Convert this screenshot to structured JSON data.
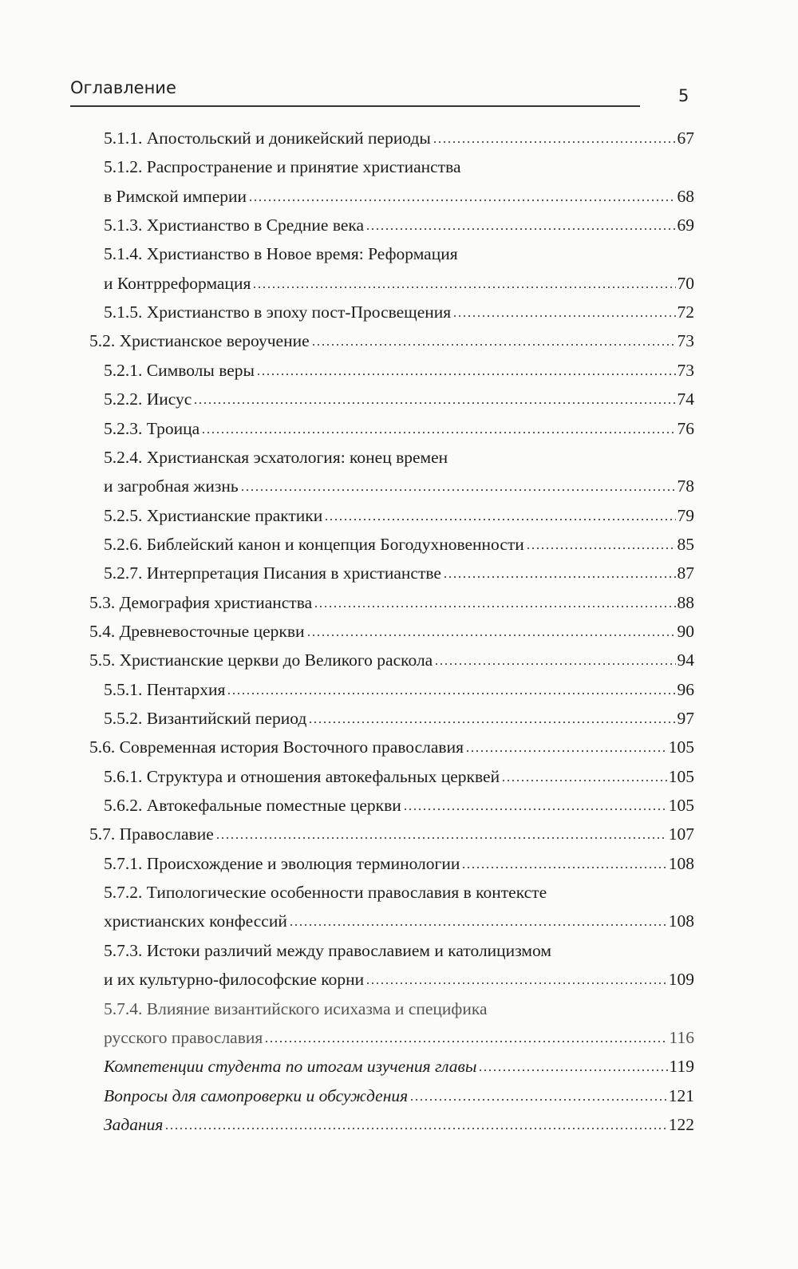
{
  "header": {
    "title": "Оглавление",
    "page_number": "5"
  },
  "toc": [
    {
      "level": 3,
      "text": "5.1.1. Апостольский и доникейский периоды",
      "page": "67"
    },
    {
      "level": 3,
      "text": "5.1.2. Распространение и принятие христианства",
      "page": null
    },
    {
      "level": 3,
      "text": "в Римской империи",
      "page": "68"
    },
    {
      "level": 3,
      "text": "5.1.3. Христианство в Средние века",
      "page": "69"
    },
    {
      "level": 3,
      "text": "5.1.4. Христианство в Новое время: Реформация",
      "page": null
    },
    {
      "level": 3,
      "text": "и Контрреформация",
      "page": "70"
    },
    {
      "level": 3,
      "text": "5.1.5. Христианство в эпоху пост-Просвещения",
      "page": "72"
    },
    {
      "level": 2,
      "text": "5.2. Христианское вероучение",
      "page": "73"
    },
    {
      "level": 3,
      "text": "5.2.1. Символы веры",
      "page": "73"
    },
    {
      "level": 3,
      "text": "5.2.2. Иисус",
      "page": "74"
    },
    {
      "level": 3,
      "text": "5.2.3. Троица",
      "page": "76"
    },
    {
      "level": 3,
      "text": "5.2.4. Христианская эсхатология: конец времен",
      "page": null
    },
    {
      "level": 3,
      "text": "и загробная жизнь",
      "page": "78"
    },
    {
      "level": 3,
      "text": "5.2.5. Христианские практики",
      "page": "79"
    },
    {
      "level": 3,
      "text": "5.2.6. Библейский канон и концепция Богодухновенности",
      "page": "85"
    },
    {
      "level": 3,
      "text": "5.2.7. Интерпретация Писания в христианстве",
      "page": "87"
    },
    {
      "level": 2,
      "text": "5.3. Демография христианства",
      "page": "88"
    },
    {
      "level": 2,
      "text": "5.4. Древневосточные церкви",
      "page": "90"
    },
    {
      "level": 2,
      "text": "5.5. Христианские церкви до Великого раскола",
      "page": "94"
    },
    {
      "level": 3,
      "text": "5.5.1. Пентархия",
      "page": "96"
    },
    {
      "level": 3,
      "text": "5.5.2. Византийский период",
      "page": "97"
    },
    {
      "level": 2,
      "text": "5.6. Современная история Восточного православия",
      "page": "105"
    },
    {
      "level": 3,
      "text": "5.6.1. Структура и отношения автокефальных церквей",
      "page": "105"
    },
    {
      "level": 3,
      "text": "5.6.2. Автокефальные поместные церкви",
      "page": "105"
    },
    {
      "level": 2,
      "text": "5.7. Православие",
      "page": "107"
    },
    {
      "level": 3,
      "text": "5.7.1. Происхождение и эволюция терминологии",
      "page": "108"
    },
    {
      "level": 3,
      "text": "5.7.2. Типологические особенности православия в контексте",
      "page": null
    },
    {
      "level": 3,
      "text": "христианских конфессий",
      "page": "108"
    },
    {
      "level": 3,
      "text": "5.7.3. Истоки различий между православием и католицизмом",
      "page": null
    },
    {
      "level": 3,
      "text": "и их культурно-философские корни",
      "page": "109"
    },
    {
      "level": 3,
      "text": "5.7.4. Влияние византийского исихазма и специфика",
      "page": null,
      "faded": true
    },
    {
      "level": 3,
      "text": "русского православия",
      "page": "116",
      "faded": true
    },
    {
      "level": 3,
      "text": "Компетенции студента по итогам изучения главы",
      "page": "119",
      "italic": true
    },
    {
      "level": 3,
      "text": "Вопросы для самопроверки и обсуждения",
      "page": "121",
      "italic": true
    },
    {
      "level": 3,
      "text": "Задания",
      "page": "122",
      "italic": true
    }
  ]
}
